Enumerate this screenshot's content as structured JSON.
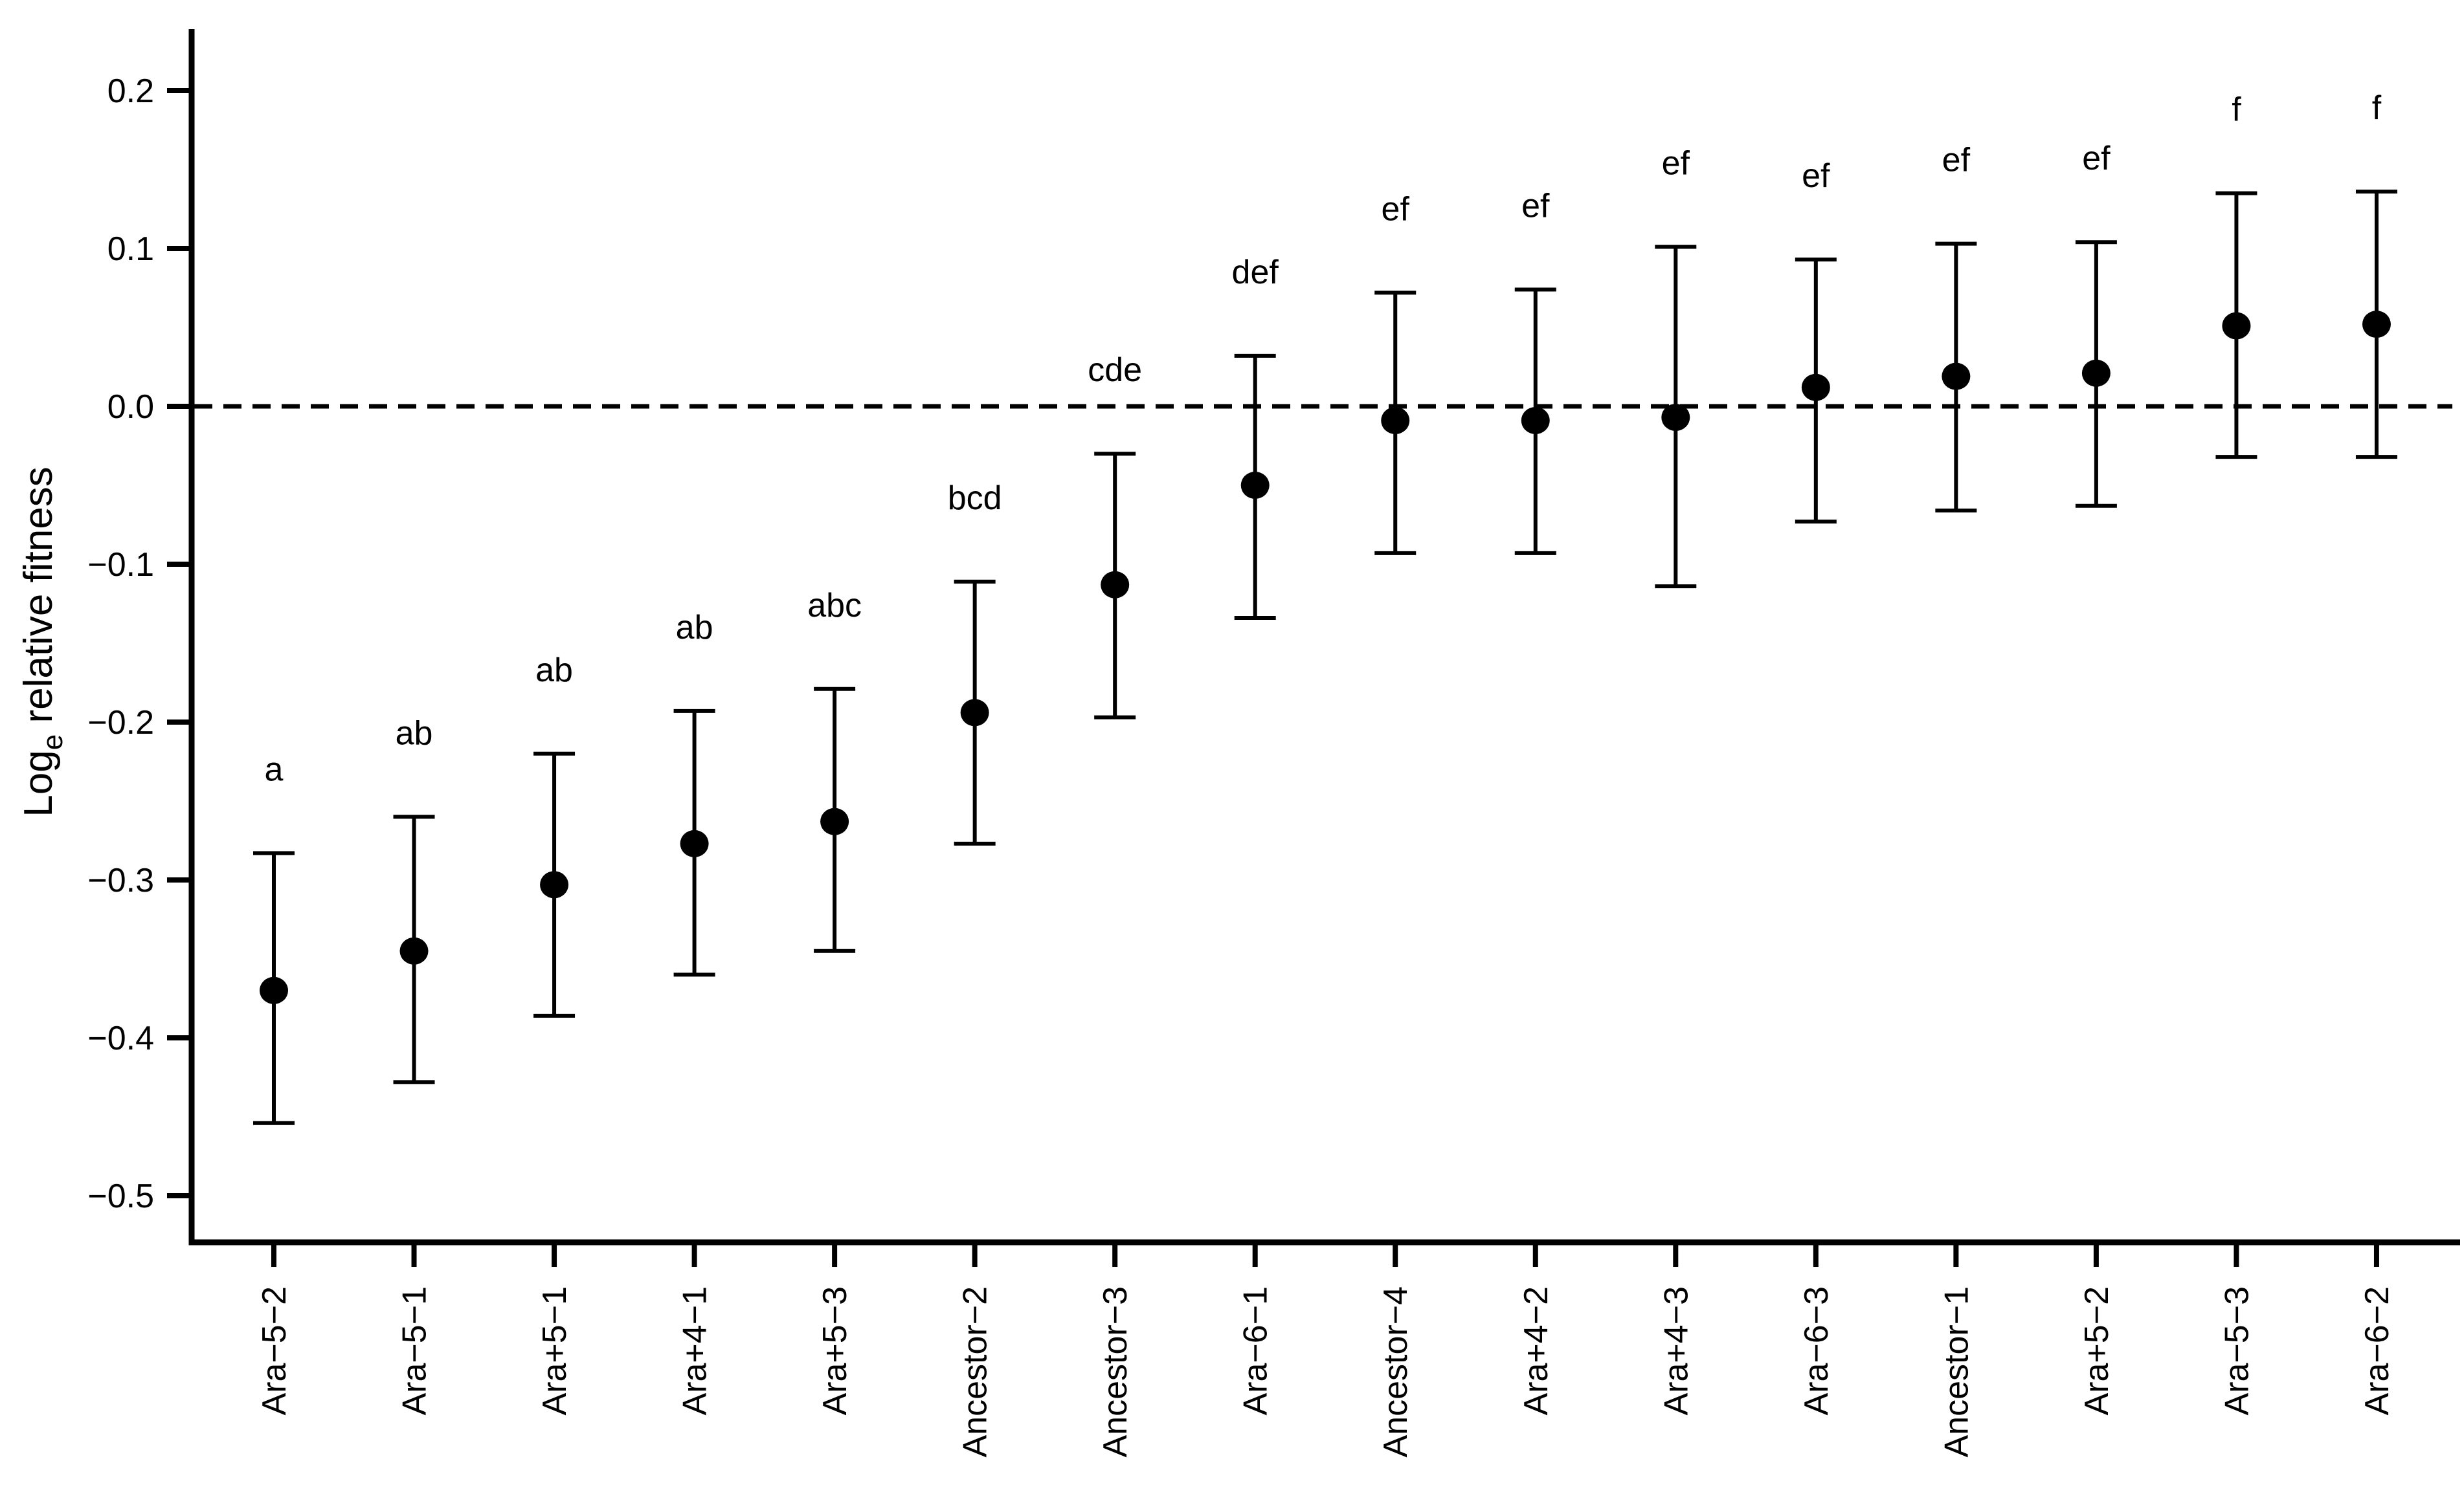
{
  "figure": {
    "background_color": "#ffffff",
    "ink_color": "#000000",
    "title": "",
    "ylabel_parts": {
      "prefix": "Log",
      "subscript": "e",
      "rest": " relative fitness"
    }
  },
  "chart_data": {
    "type": "scatter",
    "subtype": "point-estimates-with-error-bars",
    "title": "",
    "xlabel": "",
    "ylabel": "Log_e relative fitness",
    "grid": false,
    "legend": null,
    "ylim": [
      -0.53,
      0.24
    ],
    "reference_line_y": 0.0,
    "reference_line_style": "dashed",
    "y_axis": {
      "ticks": [
        0.2,
        0.1,
        0.0,
        -0.1,
        -0.2,
        -0.3,
        -0.4,
        -0.5
      ],
      "labels": [
        "0.2",
        "0.1",
        "0.0",
        "−0.1",
        "−0.2",
        "−0.3",
        "−0.4",
        "−0.5"
      ]
    },
    "categories": [
      "Ara−5−2",
      "Ara−5−1",
      "Ara+5−1",
      "Ara+4−1",
      "Ara+5−3",
      "Ancestor−2",
      "Ancestor−3",
      "Ara−6−1",
      "Ancestor−4",
      "Ara+4−2",
      "Ara+4−3",
      "Ara−6−3",
      "Ancestor−1",
      "Ara+5−2",
      "Ara−5−3",
      "Ara−6−2"
    ],
    "points": [
      {
        "strain": "Ara−5−2",
        "letter": "a",
        "mean": -0.37,
        "ci_low": -0.454,
        "ci_high": -0.283
      },
      {
        "strain": "Ara−5−1",
        "letter": "ab",
        "mean": -0.345,
        "ci_low": -0.428,
        "ci_high": -0.26
      },
      {
        "strain": "Ara+5−1",
        "letter": "ab",
        "mean": -0.303,
        "ci_low": -0.386,
        "ci_high": -0.22
      },
      {
        "strain": "Ara+4−1",
        "letter": "ab",
        "mean": -0.277,
        "ci_low": -0.36,
        "ci_high": -0.193
      },
      {
        "strain": "Ara+5−3",
        "letter": "abc",
        "mean": -0.263,
        "ci_low": -0.345,
        "ci_high": -0.179
      },
      {
        "strain": "Ancestor−2",
        "letter": "bcd",
        "mean": -0.194,
        "ci_low": -0.277,
        "ci_high": -0.111
      },
      {
        "strain": "Ancestor−3",
        "letter": "cde",
        "mean": -0.113,
        "ci_low": -0.197,
        "ci_high": -0.03
      },
      {
        "strain": "Ara−6−1",
        "letter": "def",
        "mean": -0.05,
        "ci_low": -0.134,
        "ci_high": 0.032
      },
      {
        "strain": "Ancestor−4",
        "letter": "ef",
        "mean": -0.009,
        "ci_low": -0.093,
        "ci_high": 0.072
      },
      {
        "strain": "Ara+4−2",
        "letter": "ef",
        "mean": -0.009,
        "ci_low": -0.093,
        "ci_high": 0.074
      },
      {
        "strain": "Ara+4−3",
        "letter": "ef",
        "mean": -0.007,
        "ci_low": -0.114,
        "ci_high": 0.101
      },
      {
        "strain": "Ara−6−3",
        "letter": "ef",
        "mean": 0.012,
        "ci_low": -0.073,
        "ci_high": 0.093
      },
      {
        "strain": "Ancestor−1",
        "letter": "ef",
        "mean": 0.019,
        "ci_low": -0.066,
        "ci_high": 0.103
      },
      {
        "strain": "Ara+5−2",
        "letter": "ef",
        "mean": 0.021,
        "ci_low": -0.063,
        "ci_high": 0.104
      },
      {
        "strain": "Ara−5−3",
        "letter": "f",
        "mean": 0.051,
        "ci_low": -0.032,
        "ci_high": 0.135
      },
      {
        "strain": "Ara−6−2",
        "letter": "f",
        "mean": 0.052,
        "ci_low": -0.032,
        "ci_high": 0.136
      }
    ]
  }
}
